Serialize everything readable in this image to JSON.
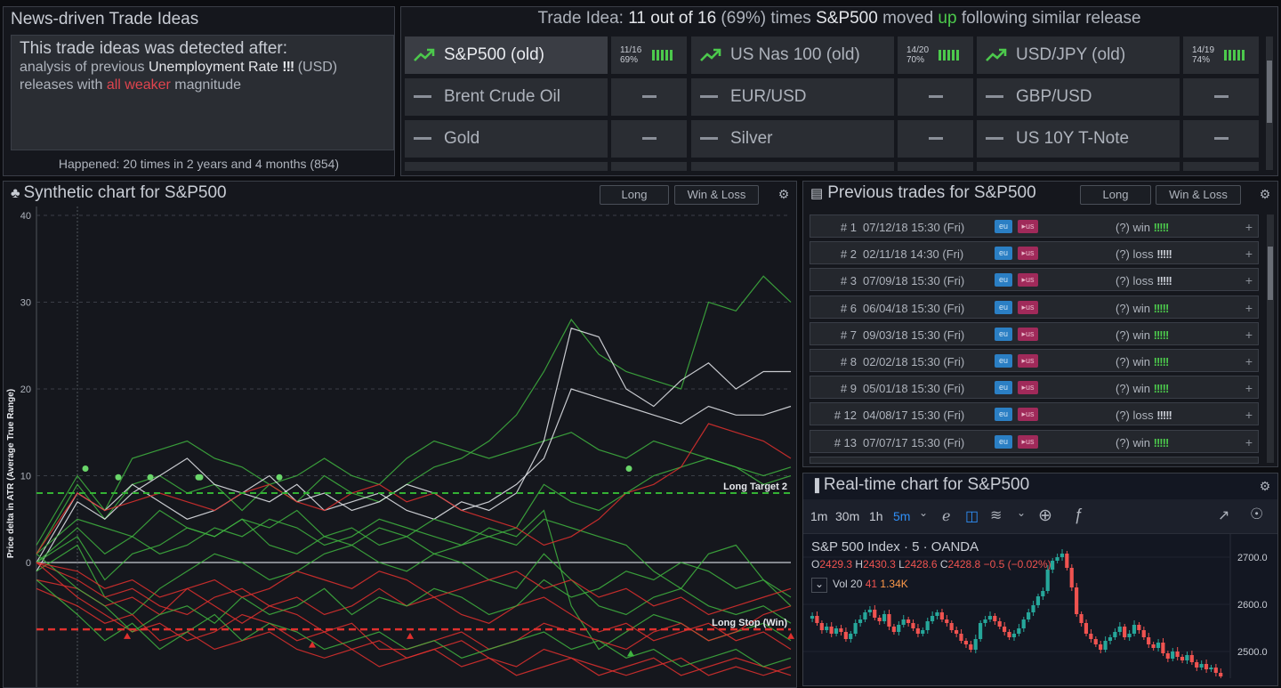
{
  "top_left": {
    "title": "News-driven Trade Ideas",
    "line1": "This trade ideas was detected after:",
    "line2_pre": "analysis of previous ",
    "line2_event": "Unemployment Rate",
    "line2_bang": "!!!",
    "line2_cur": " (USD)",
    "line3_pre": "releases with ",
    "line3_red": "all weaker",
    "line3_post": " magnitude",
    "happened": "Happened: 20 times in 2 years and 4 months (854)"
  },
  "trade_idea": {
    "pre": "Trade Idea: ",
    "count": "11 out of 16",
    "pct": " (69%) ",
    "times": "times ",
    "asset": "S&P500",
    "moved": " moved ",
    "dir": "up",
    "post": " following similar release"
  },
  "assets": [
    {
      "name": "S&P500 (old)",
      "trend": "up",
      "stat1": "11/16",
      "stat2": "69%",
      "selected": true
    },
    {
      "name": "US Nas 100 (old)",
      "trend": "up",
      "stat1": "14/20",
      "stat2": "70%"
    },
    {
      "name": "USD/JPY (old)",
      "trend": "up",
      "stat1": "14/19",
      "stat2": "74%"
    },
    {
      "name": "Brent Crude Oil",
      "trend": "flat"
    },
    {
      "name": "EUR/USD",
      "trend": "flat"
    },
    {
      "name": "GBP/USD",
      "trend": "flat"
    },
    {
      "name": "Gold",
      "trend": "flat"
    },
    {
      "name": "Silver",
      "trend": "flat"
    },
    {
      "name": "US 10Y T-Note",
      "trend": "flat"
    }
  ],
  "synthetic": {
    "title": "Synthetic chart for S&P500",
    "btn_dir": "Long",
    "btn_mode": "Win & Loss",
    "ylabel": "Price delta in ATR (Average True Range)",
    "yticks": [
      "40",
      "30",
      "20",
      "10",
      "0"
    ],
    "target_label": "Long Target 2",
    "stop_label": "Long Stop (Win)",
    "colors": {
      "green": "#3fb43f",
      "red": "#e0302e",
      "white": "#e8eaee"
    }
  },
  "chart_data": {
    "type": "line",
    "title": "Synthetic chart for S&P500",
    "ylabel": "Price delta in ATR (Average True Range)",
    "ylim": [
      -13,
      40
    ],
    "yticks": [
      0,
      10,
      20,
      30,
      40
    ],
    "hlines": [
      {
        "label": "Long Target 2",
        "y": 8
      },
      {
        "label": "Long Stop (Win)",
        "y": -7.7
      }
    ],
    "series_count": 16,
    "series": [
      {
        "color": "green",
        "values": [
          1,
          9,
          5,
          9,
          10,
          8,
          9,
          6,
          9,
          7,
          10,
          8,
          7,
          9,
          11,
          12,
          14,
          17,
          22,
          28,
          24,
          22,
          21,
          20,
          30,
          29,
          33,
          30
        ]
      },
      {
        "color": "green",
        "values": [
          2,
          10,
          6,
          12,
          13,
          14,
          12,
          11,
          9,
          10,
          12,
          10,
          9,
          12,
          14,
          13,
          12,
          13,
          14,
          15,
          13,
          12,
          14,
          13,
          12,
          11,
          10,
          11
        ]
      },
      {
        "color": "white",
        "values": [
          0,
          8,
          6,
          9,
          7,
          5,
          6,
          8,
          7,
          9,
          6,
          7,
          8,
          6,
          5,
          7,
          6,
          8,
          14,
          27,
          26,
          20,
          18,
          21,
          23,
          20,
          22,
          22
        ]
      },
      {
        "color": "white",
        "values": [
          -1,
          7,
          5,
          8,
          10,
          12,
          9,
          8,
          10,
          7,
          8,
          6,
          7,
          9,
          8,
          6,
          7,
          9,
          12,
          20,
          19,
          18,
          17,
          16,
          18,
          17,
          17,
          18
        ]
      },
      {
        "color": "green",
        "values": [
          1,
          5,
          4,
          3,
          6,
          4,
          3,
          5,
          4,
          6,
          3,
          4,
          2,
          3,
          5,
          4,
          3,
          4,
          9,
          7,
          6,
          8,
          10,
          11,
          12,
          11,
          9,
          10
        ]
      },
      {
        "color": "green",
        "values": [
          0,
          3,
          -2,
          1,
          2,
          4,
          3,
          5,
          2,
          1,
          3,
          2,
          4,
          3,
          1,
          2,
          3,
          2,
          5,
          4,
          3,
          2,
          -1,
          -3,
          1,
          2,
          -2,
          -5
        ]
      },
      {
        "color": "green",
        "values": [
          -1,
          2,
          -4,
          -6,
          -3,
          -1,
          1,
          0,
          -2,
          -1,
          1,
          2,
          0,
          -1,
          1,
          0,
          -2,
          -3,
          1,
          -2,
          -5,
          -6,
          -4,
          -3,
          -5,
          -6,
          -5,
          -7
        ]
      },
      {
        "color": "green",
        "values": [
          0,
          4,
          1,
          3,
          1,
          2,
          4,
          3,
          5,
          4,
          2,
          3,
          5,
          4,
          3,
          2,
          4,
          3,
          6,
          -5,
          -10,
          -8,
          -6,
          -7,
          -9,
          -8,
          -7,
          -9
        ]
      },
      {
        "color": "red",
        "values": [
          -2,
          -3,
          -5,
          -4,
          -6,
          -3,
          -5,
          -7,
          -5,
          -6,
          -8,
          -7,
          -10,
          -10,
          -9,
          -8,
          -10,
          -9,
          -7,
          -8,
          -9,
          -10,
          -8,
          -7,
          -9,
          -8,
          -6,
          -5
        ]
      },
      {
        "color": "red",
        "values": [
          1,
          8,
          6,
          7,
          8,
          7,
          6,
          8,
          9,
          7,
          6,
          8,
          9,
          7,
          8,
          6,
          5,
          4,
          2,
          3,
          5,
          8,
          9,
          11,
          16,
          15,
          14,
          12
        ]
      },
      {
        "color": "red",
        "values": [
          0,
          -2,
          -4,
          -3,
          -5,
          -6,
          -4,
          -3,
          -5,
          -4,
          -6,
          -5,
          -3,
          -5,
          -4,
          -6,
          -7,
          -5,
          -4,
          -6,
          -8,
          -7,
          -9,
          -8,
          -7,
          -9,
          -8,
          -10
        ]
      },
      {
        "color": "red",
        "values": [
          0,
          -4,
          -6,
          -8,
          -7,
          -9,
          -8,
          -6,
          -7,
          -9,
          -8,
          -10,
          -9,
          -11,
          -10,
          -9,
          -11,
          -12,
          -10,
          -11,
          -13,
          -12,
          -11,
          -13,
          -12,
          -11,
          -12,
          -13
        ]
      },
      {
        "color": "red",
        "values": [
          -3,
          -5,
          -7,
          -6,
          -9,
          -8,
          -10,
          -9,
          -8,
          -10,
          -11,
          -10,
          -12,
          -11,
          -10,
          -12,
          -11,
          -13,
          -12,
          -11,
          -12,
          -13,
          -12,
          -11,
          -13,
          -12,
          -13,
          -12
        ]
      },
      {
        "color": "green",
        "values": [
          1,
          -3,
          -5,
          -8,
          -6,
          -5,
          -7,
          -4,
          -6,
          -5,
          -3,
          -6,
          -4,
          -5,
          -3,
          -4,
          -6,
          -5,
          -2,
          -4,
          -3,
          -1,
          -2,
          0,
          -1,
          -3,
          -2,
          -4
        ]
      },
      {
        "color": "red",
        "values": [
          0,
          -1,
          -3,
          -2,
          -4,
          -3,
          -2,
          -4,
          -3,
          -1,
          -2,
          -3,
          -1,
          -2,
          -4,
          -3,
          -2,
          -1,
          -3,
          -2,
          -4,
          -3,
          -5,
          -4,
          -6,
          -5,
          -4,
          -3
        ]
      },
      {
        "color": "green",
        "values": [
          -2,
          -6,
          -9,
          -7,
          -10,
          -8,
          -6,
          -9,
          -7,
          -8,
          -10,
          -9,
          -8,
          -10,
          -9,
          -11,
          -10,
          -9,
          -8,
          -10,
          -9,
          -11,
          -10,
          -12,
          -11,
          -10,
          -12,
          -11
        ]
      }
    ]
  },
  "previous": {
    "title": "Previous trades for S&P500",
    "btn_dir": "Long",
    "btn_mode": "Win & Loss",
    "rows": [
      {
        "num": "# 1",
        "date": "07/12/18 15:30 (Fri)",
        "res": "(?) win",
        "bars": "!!!!!",
        "good": true
      },
      {
        "num": "# 2",
        "date": "02/11/18 14:30 (Fri)",
        "res": "(?) loss",
        "bars": "!!!!!",
        "good": false
      },
      {
        "num": "# 3",
        "date": "07/09/18 15:30 (Fri)",
        "res": "(?) loss",
        "bars": "!!!!!",
        "good": false
      },
      {
        "num": "# 6",
        "date": "06/04/18 15:30 (Fri)",
        "res": "(?) win",
        "bars": "!!!!!",
        "good": true
      },
      {
        "num": "# 7",
        "date": "09/03/18 15:30 (Fri)",
        "res": "(?) win",
        "bars": "!!!!!",
        "good": true
      },
      {
        "num": "# 8",
        "date": "02/02/18 15:30 (Fri)",
        "res": "(?) win",
        "bars": "!!!!!",
        "good": true
      },
      {
        "num": "# 9",
        "date": "05/01/18 15:30 (Fri)",
        "res": "(?) win",
        "bars": "!!!!!",
        "good": true
      },
      {
        "num": "# 12",
        "date": "04/08/17 15:30 (Fri)",
        "res": "(?) loss",
        "bars": "!!!!!",
        "good": false
      },
      {
        "num": "# 13",
        "date": "07/07/17 15:30 (Fri)",
        "res": "(?) win",
        "bars": "!!!!!",
        "good": true
      }
    ],
    "eu": "eu",
    "us": "us",
    "plus": "+"
  },
  "realtime": {
    "title": "Real-time chart for S&P500",
    "intervals": [
      "1m",
      "30m",
      "1h",
      "5m"
    ],
    "active_interval": "5m",
    "symbol": "S&P 500 Index · 5 · OANDA",
    "o_lbl": "O",
    "o": "2429.3",
    "h_lbl": "H",
    "h": "2430.3",
    "l_lbl": "L",
    "l": "2428.6",
    "c_lbl": "C",
    "c": "2428.8",
    "chg": "−0.5 (−0.02%)",
    "vol_lbl": "Vol 20",
    "vol1": "41",
    "vol2": "1.34K",
    "yticks": [
      "2700.0",
      "2600.0",
      "2500.0"
    ]
  }
}
